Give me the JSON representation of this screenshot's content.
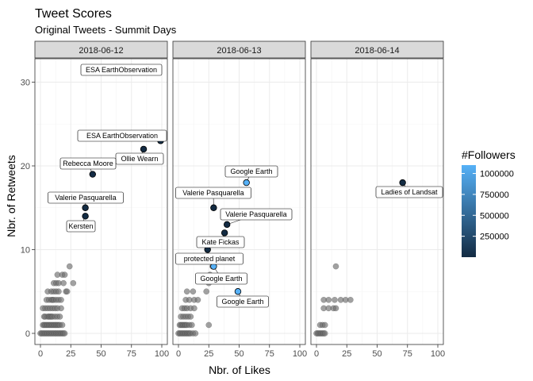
{
  "chart_data": {
    "type": "scatter",
    "title": "Tweet Scores",
    "subtitle": "Original Tweets - Summit Days",
    "xlabel": "Nbr. of Likes",
    "ylabel": "Nbr. of Retweets",
    "xlim": [
      0,
      100
    ],
    "ylim": [
      0,
      31
    ],
    "x_ticks": [
      "0",
      "25",
      "50",
      "75",
      "100"
    ],
    "y_ticks": [
      "0",
      "10",
      "20",
      "30"
    ],
    "legend": {
      "title": "#Followers",
      "placement": "right",
      "labels": [
        "1000000",
        "750000",
        "500000",
        "250000"
      ],
      "values": [
        1000000,
        750000,
        500000,
        250000
      ],
      "range": [
        0,
        1100000
      ],
      "color_low": "#132b43",
      "color_high": "#56b1f7"
    },
    "unlabeled_color": "#6e6e6e",
    "panels": [
      {
        "facet": "2018-06-12",
        "unlabeled_points": [
          [
            0,
            0
          ],
          [
            1,
            0
          ],
          [
            2,
            0
          ],
          [
            3,
            0
          ],
          [
            4,
            0
          ],
          [
            5,
            0
          ],
          [
            6,
            0
          ],
          [
            7,
            0
          ],
          [
            8,
            0
          ],
          [
            9,
            0
          ],
          [
            10,
            0
          ],
          [
            11,
            0
          ],
          [
            12,
            0
          ],
          [
            13,
            0
          ],
          [
            14,
            0
          ],
          [
            15,
            0
          ],
          [
            16,
            0
          ],
          [
            17,
            0
          ],
          [
            18,
            0
          ],
          [
            19,
            0
          ],
          [
            20,
            0
          ],
          [
            2,
            1
          ],
          [
            3,
            1
          ],
          [
            4,
            1
          ],
          [
            5,
            1
          ],
          [
            6,
            1
          ],
          [
            7,
            1
          ],
          [
            8,
            1
          ],
          [
            9,
            1
          ],
          [
            10,
            1
          ],
          [
            11,
            1
          ],
          [
            12,
            1
          ],
          [
            13,
            1
          ],
          [
            14,
            1
          ],
          [
            15,
            1
          ],
          [
            16,
            1
          ],
          [
            18,
            1
          ],
          [
            3,
            2
          ],
          [
            4,
            2
          ],
          [
            6,
            2
          ],
          [
            7,
            2
          ],
          [
            8,
            2
          ],
          [
            9,
            2
          ],
          [
            10,
            2
          ],
          [
            12,
            2
          ],
          [
            14,
            2
          ],
          [
            16,
            2
          ],
          [
            2,
            3
          ],
          [
            4,
            3
          ],
          [
            6,
            3
          ],
          [
            8,
            3
          ],
          [
            10,
            3
          ],
          [
            12,
            3
          ],
          [
            14,
            3
          ],
          [
            17,
            3
          ],
          [
            5,
            4
          ],
          [
            7,
            4
          ],
          [
            9,
            4
          ],
          [
            10,
            4
          ],
          [
            11,
            4
          ],
          [
            13,
            4
          ],
          [
            15,
            4
          ],
          [
            17,
            4
          ],
          [
            6,
            5
          ],
          [
            9,
            5
          ],
          [
            11,
            5
          ],
          [
            13,
            5
          ],
          [
            15,
            5
          ],
          [
            21,
            5
          ],
          [
            22,
            5
          ],
          [
            11,
            6
          ],
          [
            13,
            6
          ],
          [
            15,
            6
          ],
          [
            19,
            6
          ],
          [
            27,
            6
          ],
          [
            14,
            7
          ],
          [
            18,
            7
          ],
          [
            20,
            7
          ],
          [
            24,
            8
          ]
        ],
        "labeled_points": [
          {
            "label": "ESA EarthObservation",
            "x": 99,
            "y": 23,
            "followers": 30000
          },
          {
            "label": "Ollie Wearn",
            "x": 85,
            "y": 22,
            "followers": 2000
          },
          {
            "label": "Rebecca Moore",
            "x": 43,
            "y": 19,
            "followers": 10000
          },
          {
            "label": "Valerie Pasquarella",
            "x": 37,
            "y": 15,
            "followers": 2000
          },
          {
            "label": "Kersten",
            "x": 37,
            "y": 14,
            "followers": 2000
          }
        ],
        "offchart_labels": [
          "ESA EarthObservation"
        ]
      },
      {
        "facet": "2018-06-13",
        "unlabeled_points": [
          [
            0,
            0
          ],
          [
            1,
            0
          ],
          [
            2,
            0
          ],
          [
            3,
            0
          ],
          [
            4,
            0
          ],
          [
            5,
            0
          ],
          [
            6,
            0
          ],
          [
            7,
            0
          ],
          [
            8,
            0
          ],
          [
            9,
            0
          ],
          [
            10,
            0
          ],
          [
            12,
            0
          ],
          [
            14,
            0
          ],
          [
            1,
            1
          ],
          [
            2,
            1
          ],
          [
            3,
            1
          ],
          [
            4,
            1
          ],
          [
            5,
            1
          ],
          [
            6,
            1
          ],
          [
            7,
            1
          ],
          [
            9,
            1
          ],
          [
            11,
            1
          ],
          [
            25,
            1
          ],
          [
            2,
            2
          ],
          [
            4,
            2
          ],
          [
            6,
            2
          ],
          [
            8,
            2
          ],
          [
            10,
            2
          ],
          [
            3,
            3
          ],
          [
            5,
            3
          ],
          [
            7,
            3
          ],
          [
            10,
            3
          ],
          [
            13,
            3
          ],
          [
            6,
            4
          ],
          [
            9,
            4
          ],
          [
            13,
            4
          ],
          [
            16,
            4
          ],
          [
            7,
            5
          ],
          [
            12,
            5
          ],
          [
            23,
            5
          ],
          [
            25,
            6
          ],
          [
            26,
            7
          ],
          [
            28,
            8
          ]
        ],
        "labeled_points": [
          {
            "label": "Google Earth",
            "x": 56,
            "y": 18,
            "followers": 1100000
          },
          {
            "label": "Valerie Pasquarella",
            "x": 29,
            "y": 15,
            "followers": 2000
          },
          {
            "label": "Valerie Pasquarella",
            "x": 40,
            "y": 13,
            "followers": 2000
          },
          {
            "label": "Kate Fickas",
            "x": 38,
            "y": 12,
            "followers": 1000
          },
          {
            "label": "protected planet",
            "x": 24,
            "y": 10,
            "followers": 5000
          },
          {
            "label": "Google Earth",
            "x": 29,
            "y": 8,
            "followers": 1100000
          },
          {
            "label": "Google Earth",
            "x": 49,
            "y": 5,
            "followers": 1100000
          }
        ]
      },
      {
        "facet": "2018-06-14",
        "unlabeled_points": [
          [
            0,
            0
          ],
          [
            1,
            0
          ],
          [
            2,
            0
          ],
          [
            3,
            0
          ],
          [
            4,
            0
          ],
          [
            5,
            0
          ],
          [
            6,
            0
          ],
          [
            7,
            0
          ],
          [
            3,
            1
          ],
          [
            5,
            1
          ],
          [
            7,
            1
          ],
          [
            6,
            3
          ],
          [
            10,
            3
          ],
          [
            14,
            3
          ],
          [
            16,
            3
          ],
          [
            15,
            4
          ],
          [
            6,
            4
          ],
          [
            10,
            4
          ],
          [
            20,
            4
          ],
          [
            24,
            4
          ],
          [
            28,
            4
          ],
          [
            16,
            8
          ]
        ],
        "labeled_points": [
          {
            "label": "Ladies of Landsat",
            "x": 71,
            "y": 18,
            "followers": 5000
          }
        ]
      }
    ]
  }
}
